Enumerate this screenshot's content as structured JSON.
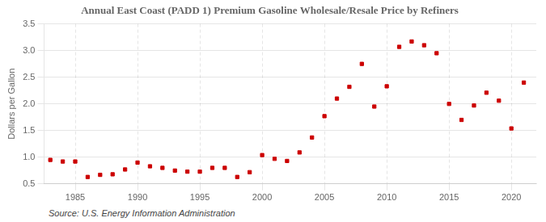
{
  "chart_data": {
    "type": "scatter",
    "title": "Annual East Coast (PADD 1) Premium Gasoline Wholesale/Resale Price by Refiners",
    "ylabel": "Dollars per Gallon",
    "source": "Source: U.S. Energy Information Administration",
    "x": [
      1983,
      1984,
      1985,
      1986,
      1987,
      1988,
      1989,
      1990,
      1991,
      1992,
      1993,
      1994,
      1995,
      1996,
      1997,
      1998,
      1999,
      2000,
      2001,
      2002,
      2003,
      2004,
      2005,
      2006,
      2007,
      2008,
      2009,
      2010,
      2011,
      2012,
      2013,
      2014,
      2015,
      2016,
      2017,
      2018,
      2019,
      2020,
      2021
    ],
    "values": [
      0.95,
      0.92,
      0.92,
      0.63,
      0.67,
      0.68,
      0.77,
      0.9,
      0.83,
      0.8,
      0.75,
      0.73,
      0.73,
      0.8,
      0.8,
      0.63,
      0.72,
      1.04,
      0.97,
      0.93,
      1.09,
      1.37,
      1.77,
      2.1,
      2.32,
      2.75,
      1.95,
      2.33,
      3.07,
      3.17,
      3.1,
      2.95,
      2.0,
      1.7,
      1.97,
      2.21,
      2.06,
      1.54,
      2.4
    ],
    "color": "#cc0000",
    "marker": "square",
    "xlim": [
      1982.5,
      2022
    ],
    "xticks": [
      1985,
      1990,
      1995,
      2000,
      2005,
      2010,
      2015,
      2020
    ],
    "ylim": [
      0.5,
      3.5
    ],
    "yticks": [
      0.5,
      {
        "value": 1.0,
        "label": "1.0"
      },
      1.5,
      {
        "value": 2.0,
        "label": "2.0"
      },
      2.5,
      {
        "value": 3.0,
        "label": "3.0"
      },
      3.5
    ],
    "grid": true
  }
}
